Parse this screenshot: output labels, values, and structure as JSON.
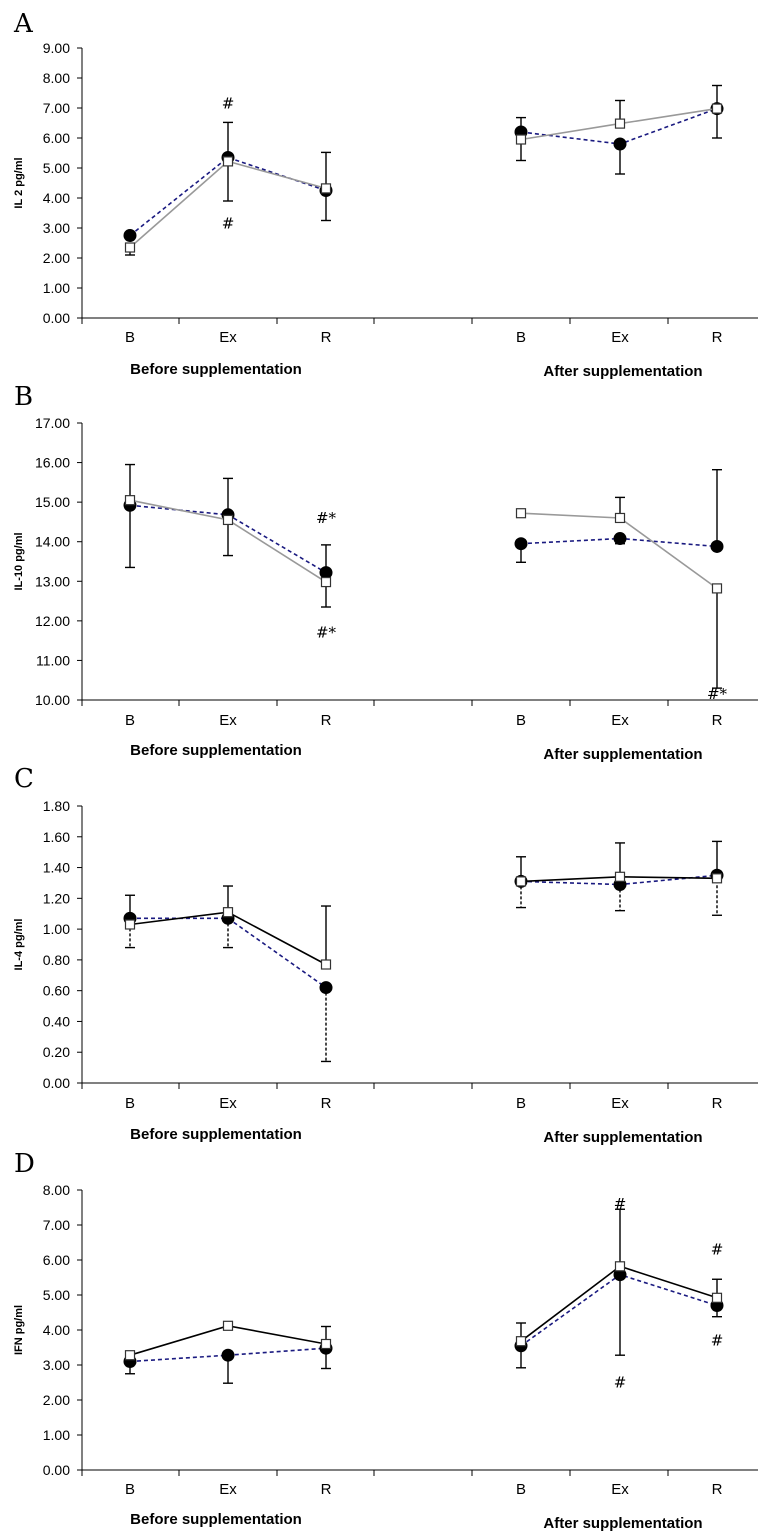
{
  "chart_data": [
    {
      "panel": "A",
      "type": "line",
      "ylabel": "IL 2 pg/ml",
      "ylim": [
        0,
        9
      ],
      "ystep": 1,
      "categories": [
        "B",
        "Ex",
        "R",
        "B",
        "Ex",
        "R"
      ],
      "groups": [
        "Before supplementation",
        "After supplementation"
      ],
      "series": [
        {
          "values": [
            2.75,
            5.35,
            4.25,
            6.2,
            5.8,
            6.98
          ],
          "color": "#1a1a80",
          "dash": true,
          "marker": "circle",
          "errors": [
            [
              null,
              null
            ],
            [
              null,
              null
            ],
            [
              3.25,
              null
            ],
            [
              5.25,
              6.68
            ],
            [
              4.8,
              null
            ],
            [
              6.0,
              null
            ]
          ]
        },
        {
          "values": [
            2.35,
            5.22,
            4.32,
            5.95,
            6.48,
            6.98
          ],
          "color": "#999999",
          "dash": false,
          "marker": "square",
          "errors": [
            [
              2.1,
              null
            ],
            [
              3.9,
              6.52
            ],
            [
              null,
              5.52
            ],
            [
              null,
              null
            ],
            [
              null,
              7.25
            ],
            [
              null,
              7.75
            ]
          ]
        }
      ],
      "annotations": [
        {
          "text": "#",
          "x": 1,
          "y": 7.15
        },
        {
          "text": "#",
          "x": 1,
          "y": 3.15
        }
      ]
    },
    {
      "panel": "B",
      "type": "line",
      "ylabel": "IL-10 pg/ml",
      "ylim": [
        10,
        17
      ],
      "ystep": 1,
      "categories": [
        "B",
        "Ex",
        "R",
        "B",
        "Ex",
        "R"
      ],
      "groups": [
        "Before supplementation",
        "After supplementation"
      ],
      "series": [
        {
          "values": [
            14.92,
            14.68,
            13.22,
            13.95,
            14.08,
            13.88
          ],
          "color": "#1a1a80",
          "dash": true,
          "marker": "circle",
          "errors": [
            [
              13.35,
              null
            ],
            [
              null,
              null
            ],
            [
              null,
              13.92
            ],
            [
              13.48,
              null
            ],
            [
              13.95,
              null
            ],
            [
              null,
              15.82
            ]
          ]
        },
        {
          "values": [
            15.05,
            14.55,
            12.98,
            14.72,
            14.6,
            12.82
          ],
          "color": "#999999",
          "dash": false,
          "marker": "square",
          "errors": [
            [
              null,
              15.95
            ],
            [
              13.65,
              15.6
            ],
            [
              12.35,
              null
            ],
            [
              null,
              null
            ],
            [
              null,
              15.12
            ],
            [
              10.3,
              null
            ]
          ]
        }
      ],
      "annotations": [
        {
          "text": "#*",
          "x": 2,
          "y": 14.6
        },
        {
          "text": "#*",
          "x": 2,
          "y": 11.7
        },
        {
          "text": "#*",
          "x": 5,
          "y": 10.15
        }
      ]
    },
    {
      "panel": "C",
      "type": "line",
      "ylabel": "IL-4 pg/ml",
      "ylim": [
        0,
        1.8
      ],
      "ystep": 0.2,
      "categories": [
        "B",
        "Ex",
        "R",
        "B",
        "Ex",
        "R"
      ],
      "groups": [
        "Before supplementation",
        "After supplementation"
      ],
      "series": [
        {
          "values": [
            1.07,
            1.07,
            0.62,
            1.31,
            1.29,
            1.35
          ],
          "color": "#1a1a80",
          "dash": true,
          "marker": "circle",
          "errors": [
            [
              0.88,
              null
            ],
            [
              0.88,
              null
            ],
            [
              0.14,
              null
            ],
            [
              1.14,
              null
            ],
            [
              1.12,
              null
            ],
            [
              1.09,
              null
            ]
          ]
        },
        {
          "values": [
            1.03,
            1.11,
            0.77,
            1.31,
            1.34,
            1.33
          ],
          "color": "#000000",
          "dash": false,
          "marker": "square",
          "errors": [
            [
              null,
              1.22
            ],
            [
              null,
              1.28
            ],
            [
              null,
              1.15
            ],
            [
              null,
              1.47
            ],
            [
              null,
              1.56
            ],
            [
              null,
              1.57
            ]
          ]
        }
      ],
      "annotations": []
    },
    {
      "panel": "D",
      "type": "line",
      "ylabel": "IFN pg/ml",
      "ylim": [
        0,
        8
      ],
      "ystep": 1,
      "categories": [
        "B",
        "Ex",
        "R",
        "B",
        "Ex",
        "R"
      ],
      "groups": [
        "Before supplementation",
        "After supplementation"
      ],
      "series": [
        {
          "values": [
            3.1,
            3.28,
            3.48,
            3.55,
            5.58,
            4.7
          ],
          "color": "#1a1a80",
          "dash": true,
          "marker": "circle",
          "errors": [
            [
              2.75,
              null
            ],
            [
              2.48,
              null
            ],
            [
              2.9,
              null
            ],
            [
              2.92,
              null
            ],
            [
              3.28,
              null
            ],
            [
              4.38,
              null
            ]
          ]
        },
        {
          "values": [
            3.28,
            4.12,
            3.6,
            3.68,
            5.82,
            4.92
          ],
          "color": "#000000",
          "dash": false,
          "marker": "square",
          "errors": [
            [
              null,
              null
            ],
            [
              null,
              null
            ],
            [
              null,
              4.1
            ],
            [
              null,
              4.2
            ],
            [
              null,
              7.45
            ],
            [
              null,
              5.45
            ]
          ]
        }
      ],
      "annotations": [
        {
          "text": "#",
          "x": 4,
          "y": 7.6
        },
        {
          "text": "#",
          "x": 4,
          "y": 2.5
        },
        {
          "text": "#",
          "x": 5,
          "y": 6.3
        },
        {
          "text": "#",
          "x": 5,
          "y": 3.7
        }
      ]
    }
  ]
}
